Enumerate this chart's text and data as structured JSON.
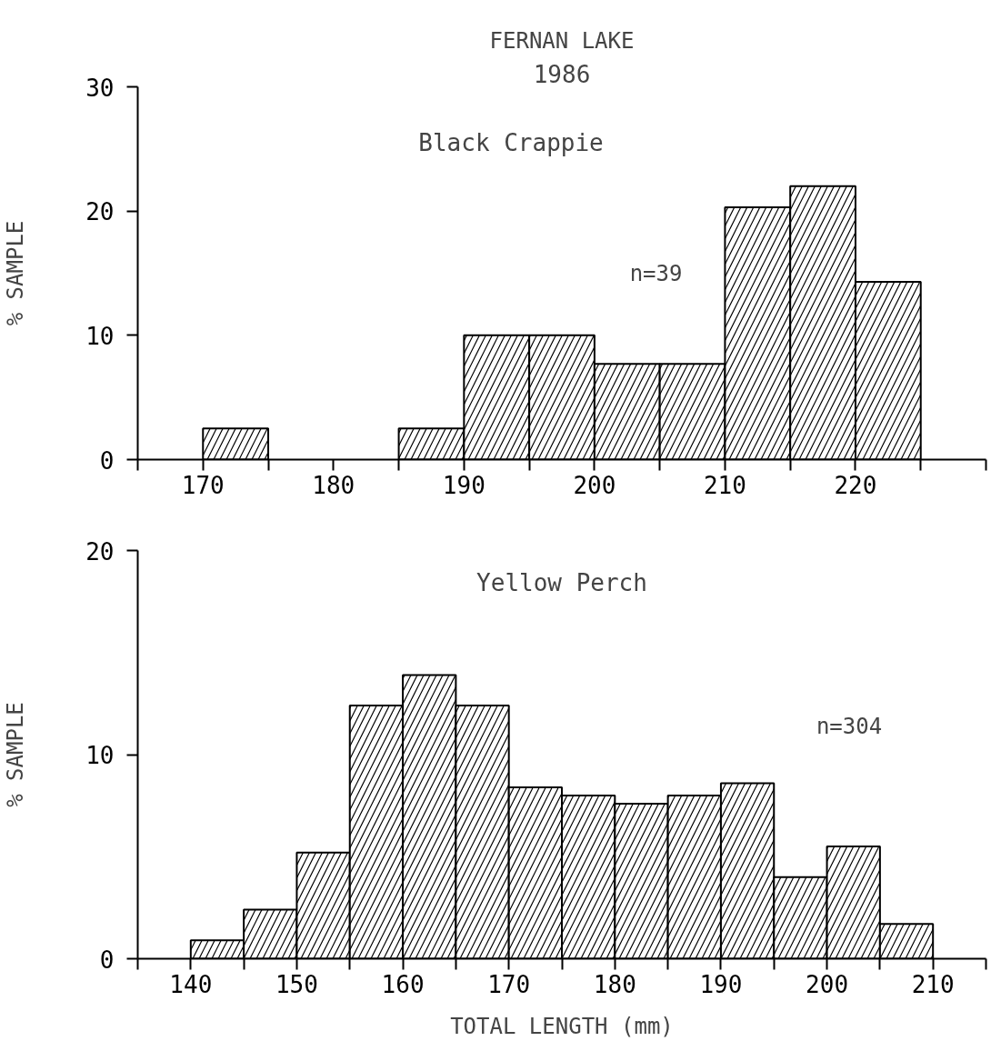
{
  "chart_data": [
    {
      "type": "histogram",
      "title": "FERNAN LAKE",
      "subtitle": "1986",
      "ylabel": "% SAMPLE",
      "bins": [
        170,
        175,
        180,
        185,
        190,
        195,
        200,
        205,
        210,
        215,
        220,
        225
      ],
      "series": [
        {
          "name": "Black Crappie",
          "color": "#ffffff",
          "values": [
            2.5,
            0,
            0,
            2.5,
            10,
            10,
            7.7,
            7.7,
            20.3,
            22,
            14.3
          ]
        }
      ],
      "annotations": [
        "n=39"
      ],
      "xlim": [
        165,
        230
      ],
      "ylim": [
        0,
        30
      ],
      "xticks": [
        {
          "value": 165,
          "label": null
        },
        170,
        {
          "value": 175,
          "label": null
        },
        180,
        {
          "value": 185,
          "label": null
        },
        190,
        {
          "value": 195,
          "label": null
        },
        200,
        {
          "value": 205,
          "label": null
        },
        210,
        {
          "value": 215,
          "label": null
        },
        220,
        {
          "value": 225,
          "label": null
        },
        {
          "value": 230,
          "label": null
        }
      ],
      "yticks": [
        0,
        10,
        20,
        30
      ],
      "grid": false
    },
    {
      "type": "histogram",
      "xlabel": "TOTAL LENGTH (mm)",
      "ylabel": "% SAMPLE",
      "bins": [
        140,
        145,
        150,
        155,
        160,
        165,
        170,
        175,
        180,
        185,
        190,
        195,
        200,
        205,
        210
      ],
      "series": [
        {
          "name": "Yellow Perch",
          "color": "#ffffff",
          "values": [
            0.9,
            2.4,
            5.2,
            12.4,
            13.9,
            12.4,
            8.4,
            8.0,
            7.6,
            8.0,
            8.6,
            4.0,
            5.5,
            1.7
          ]
        }
      ],
      "annotations": [
        "n=304"
      ],
      "xlim": [
        135,
        215
      ],
      "ylim": [
        0,
        20
      ],
      "xticks": [
        {
          "value": 135,
          "label": null
        },
        140,
        {
          "value": 145,
          "label": null
        },
        150,
        {
          "value": 155,
          "label": null
        },
        160,
        {
          "value": 165,
          "label": null
        },
        170,
        {
          "value": 175,
          "label": null
        },
        180,
        {
          "value": 185,
          "label": null
        },
        190,
        {
          "value": 195,
          "label": null
        },
        200,
        {
          "value": 205,
          "label": null
        },
        210,
        {
          "value": 215,
          "label": null
        }
      ],
      "yticks": [
        0,
        10,
        20
      ],
      "grid": false
    }
  ]
}
